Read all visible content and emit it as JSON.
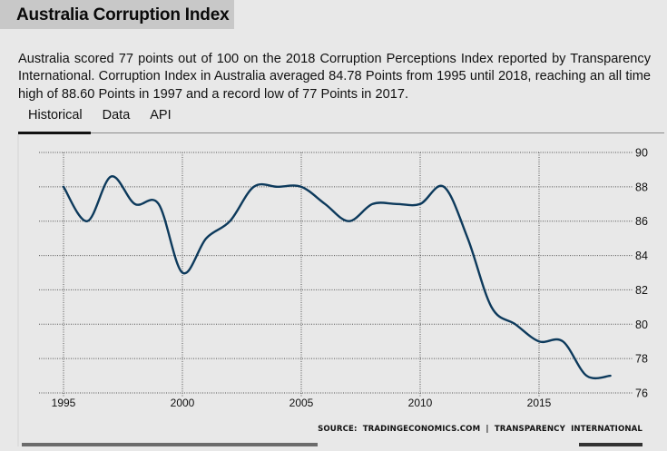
{
  "page": {
    "title": "Australia Corruption Index",
    "description": "Australia scored 77 points out of 100 on the 2018 Corruption Perceptions Index reported by Transparency International. Corruption Index in Australia averaged 84.78 Points from 1995 until 2018, reaching an all time high of 88.60 Points in 1997 and a record low of 77 Points in 2017.",
    "tabs": [
      {
        "label": "Historical",
        "active": true
      },
      {
        "label": "Data",
        "active": false
      },
      {
        "label": "API",
        "active": false
      }
    ],
    "source": "SOURCE:  TRADINGECONOMICS.COM  |  TRANSPARENCY  INTERNATIONAL"
  },
  "colors": {
    "line": "#0d3a5c",
    "grid": "#555555",
    "title_bg": "#c8c8c8",
    "page_bg": "#e8e8e8"
  },
  "chart_data": {
    "type": "line",
    "title": "Australia Corruption Index",
    "xlabel": "",
    "ylabel": "",
    "x": [
      1995,
      1996,
      1997,
      1998,
      1999,
      2000,
      2001,
      2002,
      2003,
      2004,
      2005,
      2006,
      2007,
      2008,
      2009,
      2010,
      2011,
      2012,
      2013,
      2014,
      2015,
      2016,
      2017,
      2018
    ],
    "series": [
      {
        "name": "Corruption Index",
        "values": [
          88,
          86,
          88.6,
          87,
          87,
          83,
          85,
          86,
          88,
          88,
          88,
          87,
          86,
          87,
          87,
          87,
          88,
          85,
          81,
          80,
          79,
          79,
          77,
          77
        ]
      }
    ],
    "xlim": [
      1985.4,
      2020
    ],
    "ylim": [
      76,
      90
    ],
    "x_ticks": [
      1995,
      2000,
      2005,
      2010,
      2015
    ],
    "y_ticks": [
      76,
      78,
      80,
      82,
      84,
      86,
      88,
      90
    ],
    "y_axis_side": "right",
    "grid": true,
    "legend": "none"
  }
}
